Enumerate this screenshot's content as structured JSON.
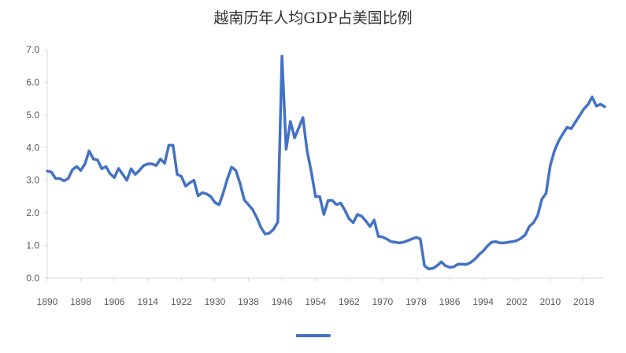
{
  "chart_data": {
    "type": "line",
    "title": "越南历年人均GDP占美国比例",
    "xlabel": "",
    "ylabel": "",
    "xlim": [
      1890,
      2023
    ],
    "ylim": [
      0,
      7
    ],
    "grid": false,
    "legend": "bottom",
    "x_ticks": [
      1890,
      1898,
      1906,
      1914,
      1922,
      1930,
      1938,
      1946,
      1954,
      1962,
      1970,
      1978,
      1986,
      1994,
      2002,
      2010,
      2018
    ],
    "y_ticks": [
      0,
      1,
      2,
      3,
      4,
      5,
      6,
      7
    ],
    "y_tick_labels": [
      "0.0",
      "1.0",
      "2.0",
      "3.0",
      "4.0",
      "5.0",
      "6.0",
      "7.0"
    ],
    "x": [
      1890,
      1891,
      1892,
      1893,
      1894,
      1895,
      1896,
      1897,
      1898,
      1899,
      1900,
      1901,
      1902,
      1903,
      1904,
      1905,
      1906,
      1907,
      1908,
      1909,
      1910,
      1911,
      1912,
      1913,
      1914,
      1915,
      1916,
      1917,
      1918,
      1919,
      1920,
      1921,
      1922,
      1923,
      1924,
      1925,
      1926,
      1927,
      1928,
      1929,
      1930,
      1931,
      1932,
      1933,
      1934,
      1935,
      1936,
      1937,
      1938,
      1939,
      1940,
      1941,
      1942,
      1943,
      1944,
      1945,
      1946,
      1947,
      1948,
      1949,
      1950,
      1951,
      1952,
      1953,
      1954,
      1955,
      1956,
      1957,
      1958,
      1959,
      1960,
      1961,
      1962,
      1963,
      1964,
      1965,
      1966,
      1967,
      1968,
      1969,
      1970,
      1971,
      1972,
      1973,
      1974,
      1975,
      1976,
      1977,
      1978,
      1979,
      1980,
      1981,
      1982,
      1983,
      1984,
      1985,
      1986,
      1987,
      1988,
      1989,
      1990,
      1991,
      1992,
      1993,
      1994,
      1995,
      1996,
      1997,
      1998,
      1999,
      2000,
      2001,
      2002,
      2003,
      2004,
      2005,
      2006,
      2007,
      2008,
      2009,
      2010,
      2011,
      2012,
      2013,
      2014,
      2015,
      2016,
      2017,
      2018,
      2019,
      2020,
      2021,
      2022,
      2023
    ],
    "series": [
      {
        "name": "",
        "color": "#4472c4",
        "values": [
          3.28,
          3.25,
          3.05,
          3.05,
          2.98,
          3.05,
          3.32,
          3.42,
          3.3,
          3.5,
          3.9,
          3.65,
          3.62,
          3.35,
          3.42,
          3.2,
          3.08,
          3.36,
          3.18,
          3.0,
          3.35,
          3.18,
          3.3,
          3.45,
          3.5,
          3.5,
          3.45,
          3.65,
          3.52,
          4.07,
          4.07,
          3.18,
          3.12,
          2.82,
          2.92,
          3.0,
          2.52,
          2.62,
          2.58,
          2.5,
          2.32,
          2.25,
          2.62,
          3.05,
          3.4,
          3.3,
          2.9,
          2.4,
          2.25,
          2.1,
          1.85,
          1.55,
          1.35,
          1.38,
          1.5,
          1.72,
          6.8,
          3.95,
          4.8,
          4.3,
          4.6,
          4.92,
          3.9,
          3.25,
          2.5,
          2.5,
          1.95,
          2.38,
          2.38,
          2.25,
          2.3,
          2.08,
          1.82,
          1.7,
          1.95,
          1.9,
          1.75,
          1.58,
          1.78,
          1.28,
          1.26,
          1.2,
          1.12,
          1.1,
          1.08,
          1.1,
          1.15,
          1.2,
          1.25,
          1.2,
          0.38,
          0.28,
          0.3,
          0.38,
          0.5,
          0.38,
          0.33,
          0.35,
          0.43,
          0.43,
          0.42,
          0.48,
          0.58,
          0.72,
          0.83,
          0.98,
          1.1,
          1.12,
          1.08,
          1.08,
          1.1,
          1.12,
          1.15,
          1.22,
          1.32,
          1.58,
          1.7,
          1.92,
          2.42,
          2.6,
          3.45,
          3.9,
          4.2,
          4.42,
          4.62,
          4.58,
          4.78,
          4.98,
          5.18,
          5.32,
          5.55,
          5.27,
          5.33,
          5.25
        ]
      }
    ]
  }
}
